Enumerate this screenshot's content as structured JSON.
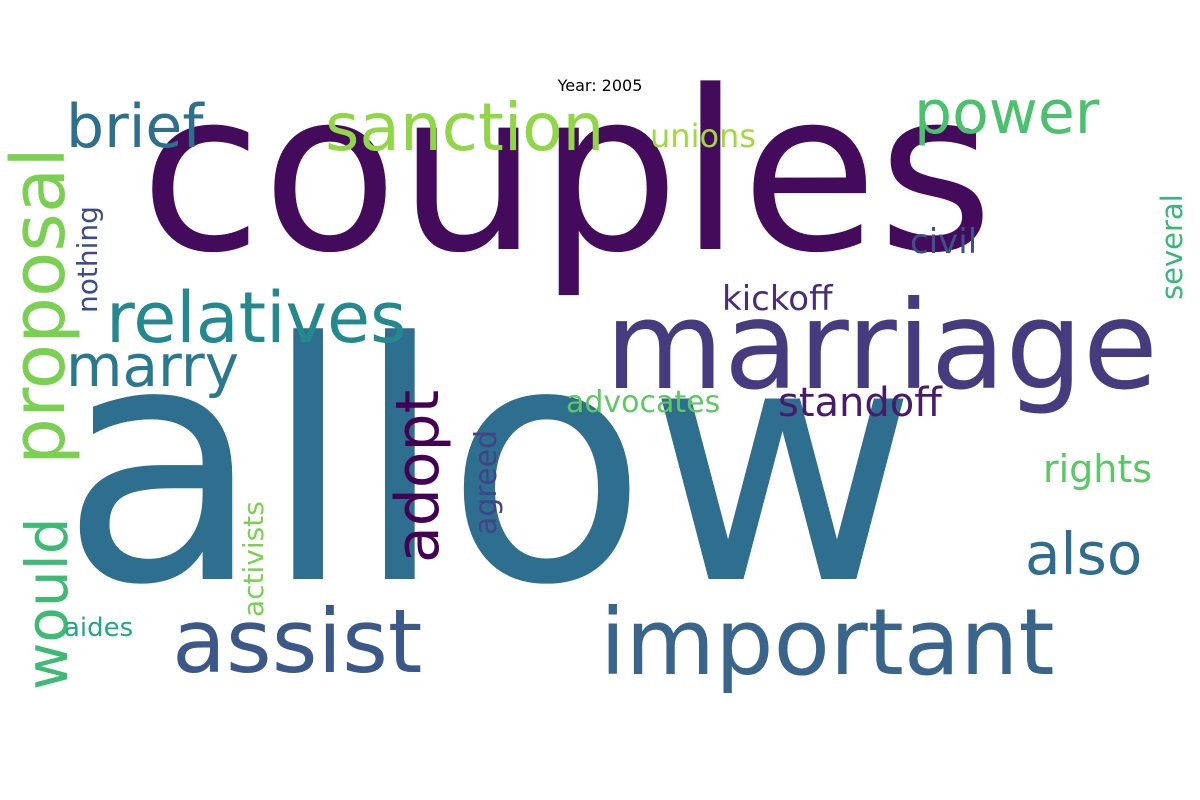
{
  "title": "Year: 2005",
  "colors": {
    "dark_purple": "#440a5c",
    "indigo": "#463b7f",
    "steel_blue": "#2e6e8e",
    "slate_blue": "#3b5888",
    "teal": "#21908d",
    "green": "#3dbb74",
    "light_green": "#5ac864",
    "lime": "#8fd744"
  },
  "words": [
    {
      "text": "allow",
      "color": "#2e6e8e"
    },
    {
      "text": "couples",
      "color": "#440a5c"
    },
    {
      "text": "marriage",
      "color": "#463b7f"
    },
    {
      "text": "important",
      "color": "#39648c"
    },
    {
      "text": "assist",
      "color": "#3b5888"
    },
    {
      "text": "relatives",
      "color": "#23898e"
    },
    {
      "text": "sanction",
      "color": "#8fd744"
    },
    {
      "text": "marry",
      "color": "#2a788e"
    },
    {
      "text": "brief",
      "color": "#2d708e"
    },
    {
      "text": "power",
      "color": "#4ac16d"
    },
    {
      "text": "would",
      "color": "#3dbb74"
    },
    {
      "text": "proposal",
      "color": "#7ad151"
    },
    {
      "text": "adopt",
      "color": "#440154"
    },
    {
      "text": "also",
      "color": "#2f6c8e"
    },
    {
      "text": "standoff",
      "color": "#481a6c"
    },
    {
      "text": "rights",
      "color": "#5ac864"
    },
    {
      "text": "advocates",
      "color": "#5ec962"
    },
    {
      "text": "kickoff",
      "color": "#472d7b"
    },
    {
      "text": "civil",
      "color": "#3b528b"
    },
    {
      "text": "unions",
      "color": "#9fda3a"
    },
    {
      "text": "nothing",
      "color": "#3e4a89"
    },
    {
      "text": "several",
      "color": "#37b779"
    },
    {
      "text": "agreed",
      "color": "#414487"
    },
    {
      "text": "activists",
      "color": "#7ad151"
    },
    {
      "text": "aides",
      "color": "#22a884"
    }
  ]
}
